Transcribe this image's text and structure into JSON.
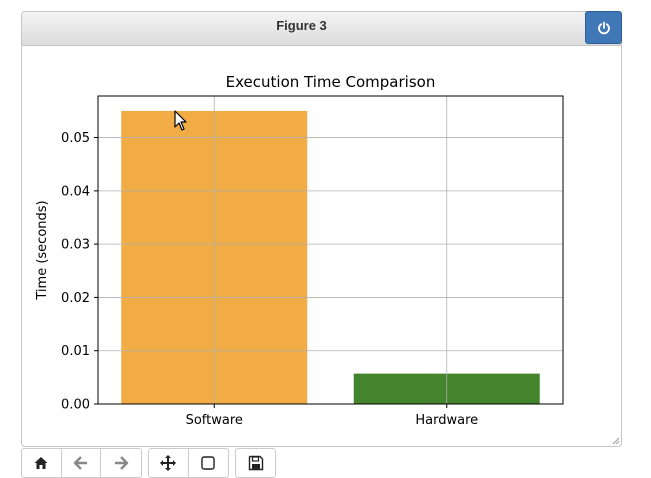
{
  "window": {
    "title": "Figure 3",
    "close_icon": "power-icon"
  },
  "toolbar": {
    "buttons": [
      {
        "icon": "home-icon",
        "enabled": true
      },
      {
        "icon": "arrow-left-icon",
        "enabled": false
      },
      {
        "icon": "arrow-right-icon",
        "enabled": false
      },
      {
        "icon": "move-icon",
        "enabled": true
      },
      {
        "icon": "zoom-rect-icon",
        "enabled": true
      },
      {
        "icon": "save-icon",
        "enabled": true
      }
    ]
  },
  "colors": {
    "software_bar": "#f0a83b",
    "hardware_bar": "#3a7d22",
    "close_button": "#3f77b7"
  },
  "chart_data": {
    "type": "bar",
    "title": "Execution Time Comparison",
    "xlabel": "",
    "ylabel": "Time (seconds)",
    "categories": [
      "Software",
      "Hardware"
    ],
    "values": [
      0.055,
      0.0057
    ],
    "ylim": [
      0,
      0.0578
    ],
    "yticks": [
      "0.00",
      "0.01",
      "0.02",
      "0.03",
      "0.04",
      "0.05"
    ],
    "grid": true,
    "bar_colors": [
      "#f0a83b",
      "#3a7d22"
    ]
  }
}
